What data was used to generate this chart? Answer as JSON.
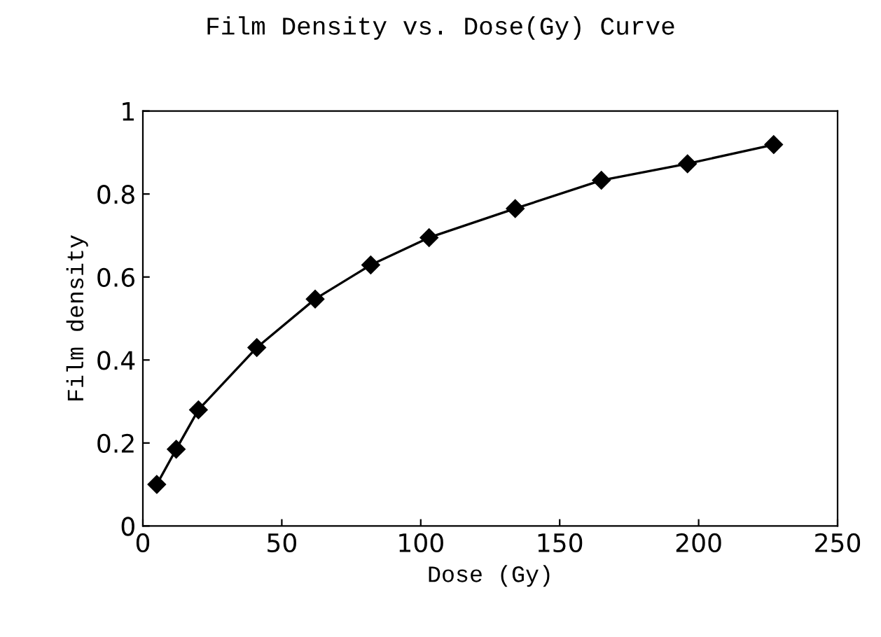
{
  "chart_data": {
    "type": "line",
    "title": "Film Density vs. Dose(Gy) Curve",
    "xlabel": "Dose (Gy)",
    "ylabel": "Film density",
    "x": [
      5,
      12,
      20,
      41,
      62,
      82,
      103,
      134,
      165,
      196,
      227
    ],
    "series": [
      {
        "color": "#000000",
        "values": [
          0.1,
          0.185,
          0.28,
          0.43,
          0.547,
          0.629,
          0.695,
          0.765,
          0.833,
          0.873,
          0.919
        ]
      }
    ],
    "xlim": [
      0,
      250
    ],
    "xticks": [
      0,
      50,
      100,
      150,
      200,
      250
    ],
    "ylim": [
      0,
      1
    ],
    "yticks": [
      0,
      0.2,
      0.4,
      0.6,
      0.8,
      1
    ],
    "marker": "diamond",
    "line_style": "solid",
    "grid": false,
    "legend": false
  }
}
